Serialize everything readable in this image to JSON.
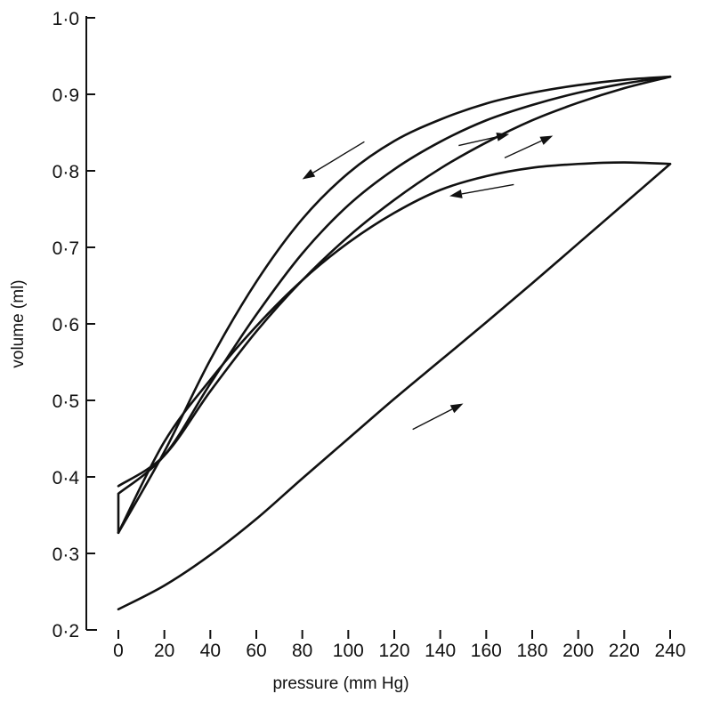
{
  "chart_data": {
    "type": "line",
    "title": "",
    "xlabel": "pressure (mm Hg)",
    "ylabel": "volume (ml)",
    "xlim": [
      0,
      240
    ],
    "ylim": [
      0.2,
      1.0
    ],
    "x_ticks": [
      0,
      20,
      40,
      60,
      80,
      100,
      120,
      140,
      160,
      180,
      200,
      220,
      240
    ],
    "x_tick_labels": [
      "0",
      "20",
      "40",
      "60",
      "80",
      "100",
      "120",
      "140",
      "160",
      "180",
      "200",
      "220",
      "240"
    ],
    "y_ticks": [
      0.2,
      0.3,
      0.4,
      0.5,
      0.6,
      0.7,
      0.8,
      0.9,
      1.0
    ],
    "y_tick_labels": [
      "0·2",
      "0·3",
      "0·4",
      "0·5",
      "0·6",
      "0·7",
      "0·8",
      "0·9",
      "1·0"
    ],
    "grid": false,
    "legend": "none",
    "series": [
      {
        "values": [
          [
            0,
            0.227
          ],
          [
            20,
            0.258
          ],
          [
            40,
            0.298
          ],
          [
            60,
            0.345
          ],
          [
            80,
            0.398
          ],
          [
            100,
            0.45
          ],
          [
            120,
            0.502
          ],
          [
            140,
            0.552
          ],
          [
            160,
            0.602
          ],
          [
            180,
            0.653
          ],
          [
            200,
            0.705
          ],
          [
            220,
            0.757
          ],
          [
            240,
            0.809
          ]
        ],
        "direction": "up"
      },
      {
        "values": [
          [
            240,
            0.809
          ],
          [
            220,
            0.811
          ],
          [
            200,
            0.809
          ],
          [
            180,
            0.804
          ],
          [
            160,
            0.793
          ],
          [
            140,
            0.775
          ],
          [
            120,
            0.745
          ],
          [
            100,
            0.706
          ],
          [
            80,
            0.657
          ],
          [
            60,
            0.597
          ],
          [
            40,
            0.527
          ],
          [
            20,
            0.446
          ],
          [
            0,
            0.327
          ]
        ],
        "direction": "down"
      },
      {
        "values": [
          [
            0,
            0.327
          ],
          [
            0,
            0.378
          ],
          [
            20,
            0.428
          ],
          [
            40,
            0.522
          ],
          [
            60,
            0.612
          ],
          [
            80,
            0.692
          ],
          [
            100,
            0.755
          ],
          [
            120,
            0.802
          ],
          [
            140,
            0.838
          ],
          [
            160,
            0.866
          ],
          [
            180,
            0.886
          ],
          [
            200,
            0.902
          ],
          [
            220,
            0.914
          ],
          [
            240,
            0.923
          ]
        ],
        "direction": "up"
      },
      {
        "values": [
          [
            240,
            0.923
          ],
          [
            220,
            0.919
          ],
          [
            200,
            0.912
          ],
          [
            180,
            0.902
          ],
          [
            160,
            0.888
          ],
          [
            140,
            0.867
          ],
          [
            120,
            0.839
          ],
          [
            100,
            0.797
          ],
          [
            80,
            0.737
          ],
          [
            60,
            0.655
          ],
          [
            40,
            0.553
          ],
          [
            20,
            0.433
          ],
          [
            0,
            0.327
          ]
        ],
        "direction": "down"
      },
      {
        "values": [
          [
            0,
            0.388
          ],
          [
            20,
            0.428
          ],
          [
            40,
            0.512
          ],
          [
            60,
            0.59
          ],
          [
            80,
            0.657
          ],
          [
            100,
            0.714
          ],
          [
            120,
            0.762
          ],
          [
            140,
            0.803
          ],
          [
            160,
            0.837
          ],
          [
            180,
            0.866
          ],
          [
            200,
            0.889
          ],
          [
            220,
            0.908
          ],
          [
            240,
            0.923
          ]
        ],
        "direction": "up"
      }
    ],
    "arrows": [
      {
        "from": [
          107,
          0.838
        ],
        "to": [
          80,
          0.789
        ]
      },
      {
        "from": [
          148,
          0.833
        ],
        "to": [
          170,
          0.848
        ]
      },
      {
        "from": [
          168,
          0.817
        ],
        "to": [
          189,
          0.846
        ]
      },
      {
        "from": [
          172,
          0.782
        ],
        "to": [
          144,
          0.767
        ]
      },
      {
        "from": [
          128,
          0.462
        ],
        "to": [
          150,
          0.496
        ]
      }
    ]
  }
}
